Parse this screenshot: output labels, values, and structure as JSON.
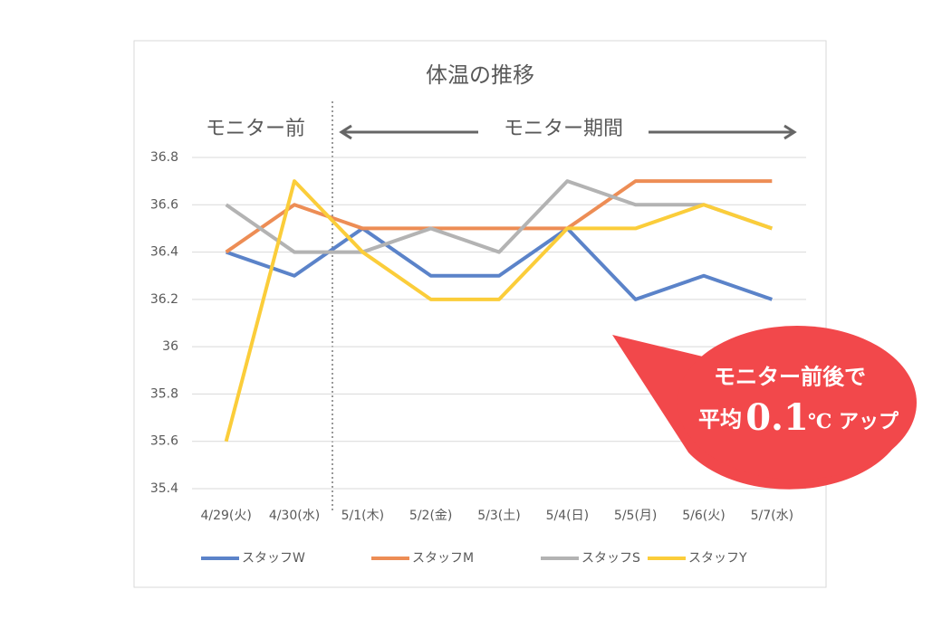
{
  "chart_data": {
    "type": "line",
    "title": "体温の推移",
    "categories": [
      "4/29(火)",
      "4/30(水)",
      "5/1(木)",
      "5/2(金)",
      "5/3(土)",
      "5/4(日)",
      "5/5(月)",
      "5/6(火)",
      "5/7(水)"
    ],
    "series": [
      {
        "name": "スタッフW",
        "color": "#5b83c9",
        "values": [
          36.4,
          36.3,
          36.5,
          36.3,
          36.3,
          36.5,
          36.2,
          36.3,
          36.2
        ]
      },
      {
        "name": "スタッフM",
        "color": "#ed8d55",
        "values": [
          36.4,
          36.6,
          36.5,
          36.5,
          36.5,
          36.5,
          36.7,
          36.7,
          36.7
        ]
      },
      {
        "name": "スタッフS",
        "color": "#b3b3b3",
        "values": [
          36.6,
          36.4,
          36.4,
          36.5,
          36.4,
          36.7,
          36.6,
          36.6,
          36.5
        ]
      },
      {
        "name": "スタッフY",
        "color": "#fbcd3a",
        "values": [
          35.6,
          36.7,
          36.4,
          36.2,
          36.2,
          36.5,
          36.5,
          36.6,
          36.5
        ]
      }
    ],
    "ylim": [
      35.4,
      36.8
    ],
    "yticks": [
      35.4,
      35.6,
      35.8,
      36,
      36.2,
      36.4,
      36.6,
      36.8
    ],
    "grid": true,
    "legend": "bottom",
    "annotations": {
      "before": "モニター前",
      "period": "モニター期間",
      "callout": [
        "モニター前後で",
        "平均",
        "0.1",
        "℃ アップ"
      ]
    }
  }
}
